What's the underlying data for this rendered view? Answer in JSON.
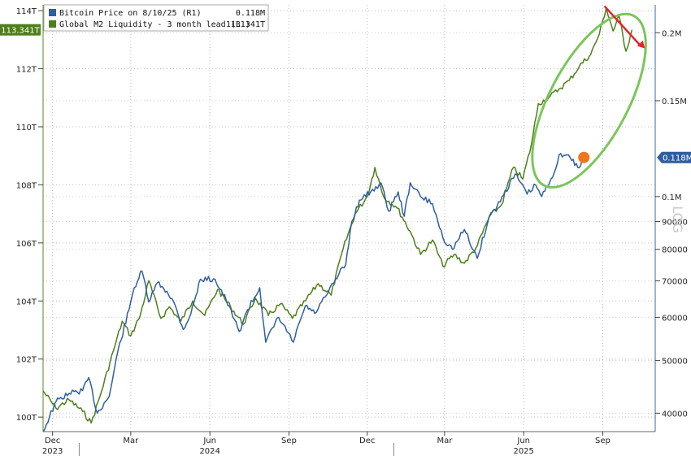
{
  "chart_data": {
    "type": "line",
    "legend": {
      "placement": "top-left",
      "entries": [
        {
          "label": "Bitcoin Price on 8/10/25 (R1)",
          "value": "0.118M",
          "color": "#2f5f9e"
        },
        {
          "label": "Global M2 Liquidity - 3 month lead (L1)",
          "value": "113.341T",
          "color": "#4f7f1a"
        }
      ]
    },
    "last_value_tags": {
      "left": {
        "text": "113.341T",
        "value": 113.341,
        "color": "#4f7f1a"
      },
      "right": {
        "text": "0.118M",
        "value": 118000,
        "color": "#2f5f9e"
      }
    },
    "axis_watermark": "LOG",
    "grid": true,
    "x_axis": {
      "range": [
        "2023-11-20",
        "2025-11-01"
      ],
      "ticks": [
        {
          "date": "2023-12-01",
          "label": "Dec",
          "year": "2023"
        },
        {
          "date": "2024-03-01",
          "label": "Mar"
        },
        {
          "date": "2024-06-01",
          "label": "Jun",
          "year": "2024"
        },
        {
          "date": "2024-09-01",
          "label": "Sep"
        },
        {
          "date": "2024-12-01",
          "label": "Dec"
        },
        {
          "date": "2025-03-01",
          "label": "Mar"
        },
        {
          "date": "2025-06-01",
          "label": "Jun",
          "year": "2025"
        },
        {
          "date": "2025-09-01",
          "label": "Sep"
        }
      ]
    },
    "y_left": {
      "range": [
        99.5,
        114.2
      ],
      "scale": "linear",
      "ticks": [
        {
          "value": 100,
          "label": "100T"
        },
        {
          "value": 102,
          "label": "102T"
        },
        {
          "value": 104,
          "label": "104T"
        },
        {
          "value": 106,
          "label": "106T"
        },
        {
          "value": 108,
          "label": "108T"
        },
        {
          "value": 110,
          "label": "110T"
        },
        {
          "value": 112,
          "label": "112T"
        },
        {
          "value": 114,
          "label": "114T"
        }
      ]
    },
    "y_right": {
      "range": [
        37000,
        225000
      ],
      "scale": "log",
      "ticks": [
        {
          "value": 40000,
          "label": "40000"
        },
        {
          "value": 50000,
          "label": "50000"
        },
        {
          "value": 60000,
          "label": "60000"
        },
        {
          "value": 70000,
          "label": "70000"
        },
        {
          "value": 80000,
          "label": "80000"
        },
        {
          "value": 90000,
          "label": "90000"
        },
        {
          "value": 100000,
          "label": "0.1M"
        },
        {
          "value": 150000,
          "label": "0.15M"
        },
        {
          "value": 200000,
          "label": "0.2M"
        }
      ]
    },
    "series": [
      {
        "name": "Bitcoin Price on 8/10/25 (R1)",
        "axis": "right",
        "color": "#2f5f9e",
        "points": [
          [
            "2023-11-20",
            37000
          ],
          [
            "2023-12-05",
            42000
          ],
          [
            "2023-12-20",
            43500
          ],
          [
            "2024-01-05",
            44000
          ],
          [
            "2024-01-12",
            46500
          ],
          [
            "2024-01-22",
            40000
          ],
          [
            "2024-02-05",
            43000
          ],
          [
            "2024-02-15",
            52000
          ],
          [
            "2024-02-28",
            62000
          ],
          [
            "2024-03-05",
            68000
          ],
          [
            "2024-03-14",
            73000
          ],
          [
            "2024-03-22",
            64000
          ],
          [
            "2024-04-01",
            69500
          ],
          [
            "2024-04-12",
            67000
          ],
          [
            "2024-04-20",
            64000
          ],
          [
            "2024-05-01",
            57000
          ],
          [
            "2024-05-10",
            61000
          ],
          [
            "2024-05-21",
            70500
          ],
          [
            "2024-06-07",
            70500
          ],
          [
            "2024-06-20",
            64500
          ],
          [
            "2024-07-05",
            56500
          ],
          [
            "2024-07-15",
            62000
          ],
          [
            "2024-07-29",
            68000
          ],
          [
            "2024-08-05",
            54000
          ],
          [
            "2024-08-20",
            60000
          ],
          [
            "2024-09-06",
            54000
          ],
          [
            "2024-09-20",
            63000
          ],
          [
            "2024-10-01",
            61000
          ],
          [
            "2024-10-15",
            66000
          ],
          [
            "2024-10-29",
            72000
          ],
          [
            "2024-11-06",
            75000
          ],
          [
            "2024-11-13",
            90000
          ],
          [
            "2024-11-22",
            98500
          ],
          [
            "2024-12-05",
            102000
          ],
          [
            "2024-12-17",
            106000
          ],
          [
            "2024-12-26",
            94000
          ],
          [
            "2025-01-06",
            102000
          ],
          [
            "2025-01-13",
            92000
          ],
          [
            "2025-01-20",
            106000
          ],
          [
            "2025-02-01",
            100000
          ],
          [
            "2025-02-15",
            97000
          ],
          [
            "2025-02-27",
            84000
          ],
          [
            "2025-03-10",
            80000
          ],
          [
            "2025-03-24",
            87000
          ],
          [
            "2025-04-08",
            77000
          ],
          [
            "2025-04-22",
            92000
          ],
          [
            "2025-05-01",
            96000
          ],
          [
            "2025-05-22",
            110000
          ],
          [
            "2025-06-05",
            101000
          ],
          [
            "2025-06-15",
            105000
          ],
          [
            "2025-06-22",
            100000
          ],
          [
            "2025-07-01",
            106000
          ],
          [
            "2025-07-14",
            120000
          ],
          [
            "2025-07-25",
            118000
          ],
          [
            "2025-08-03",
            113000
          ],
          [
            "2025-08-10",
            118000
          ]
        ],
        "marker": {
          "date": "2025-08-10",
          "value": 118000,
          "color": "#f0761e"
        }
      },
      {
        "name": "Global M2 Liquidity - 3 month lead (L1)",
        "axis": "left",
        "color": "#4f7f1a",
        "points": [
          [
            "2023-11-20",
            100.9
          ],
          [
            "2023-12-05",
            100.3
          ],
          [
            "2023-12-20",
            100.6
          ],
          [
            "2024-01-05",
            100.2
          ],
          [
            "2024-01-15",
            99.8
          ],
          [
            "2024-01-25",
            100.7
          ],
          [
            "2024-02-10",
            102.3
          ],
          [
            "2024-02-20",
            103.3
          ],
          [
            "2024-03-01",
            102.8
          ],
          [
            "2024-03-12",
            103.5
          ],
          [
            "2024-03-22",
            104.7
          ],
          [
            "2024-04-05",
            103.4
          ],
          [
            "2024-04-15",
            103.8
          ],
          [
            "2024-04-28",
            103.3
          ],
          [
            "2024-05-12",
            104.0
          ],
          [
            "2024-05-26",
            103.5
          ],
          [
            "2024-06-10",
            104.4
          ],
          [
            "2024-06-25",
            103.8
          ],
          [
            "2024-07-10",
            103.2
          ],
          [
            "2024-07-24",
            104.1
          ],
          [
            "2024-08-08",
            103.5
          ],
          [
            "2024-08-22",
            103.9
          ],
          [
            "2024-09-05",
            103.4
          ],
          [
            "2024-09-20",
            104.0
          ],
          [
            "2024-10-05",
            104.6
          ],
          [
            "2024-10-20",
            104.2
          ],
          [
            "2024-11-03",
            105.8
          ],
          [
            "2024-11-17",
            107.0
          ],
          [
            "2024-12-01",
            107.6
          ],
          [
            "2024-12-10",
            108.6
          ],
          [
            "2024-12-20",
            107.6
          ],
          [
            "2025-01-05",
            107.2
          ],
          [
            "2025-01-20",
            106.4
          ],
          [
            "2025-02-01",
            105.6
          ],
          [
            "2025-02-15",
            106.1
          ],
          [
            "2025-02-27",
            105.2
          ],
          [
            "2025-03-12",
            105.6
          ],
          [
            "2025-03-24",
            105.3
          ],
          [
            "2025-04-08",
            105.9
          ],
          [
            "2025-04-22",
            106.9
          ],
          [
            "2025-05-06",
            107.3
          ],
          [
            "2025-05-20",
            108.6
          ],
          [
            "2025-05-31",
            108.2
          ],
          [
            "2025-06-10",
            109.4
          ],
          [
            "2025-06-18",
            110.8
          ],
          [
            "2025-06-30",
            111.0
          ],
          [
            "2025-07-12",
            111.3
          ],
          [
            "2025-07-24",
            111.6
          ],
          [
            "2025-08-05",
            112.1
          ],
          [
            "2025-08-18",
            112.5
          ],
          [
            "2025-08-28",
            113.2
          ],
          [
            "2025-09-05",
            114.1
          ],
          [
            "2025-09-13",
            113.3
          ],
          [
            "2025-09-20",
            113.8
          ],
          [
            "2025-09-28",
            112.6
          ],
          [
            "2025-10-05",
            113.341
          ]
        ]
      }
    ],
    "annotations": [
      {
        "type": "ellipse",
        "color": "#7bc65a",
        "description": "highlight around recent period"
      },
      {
        "type": "arrow",
        "color": "#e8232a",
        "direction": "down-right"
      }
    ]
  }
}
